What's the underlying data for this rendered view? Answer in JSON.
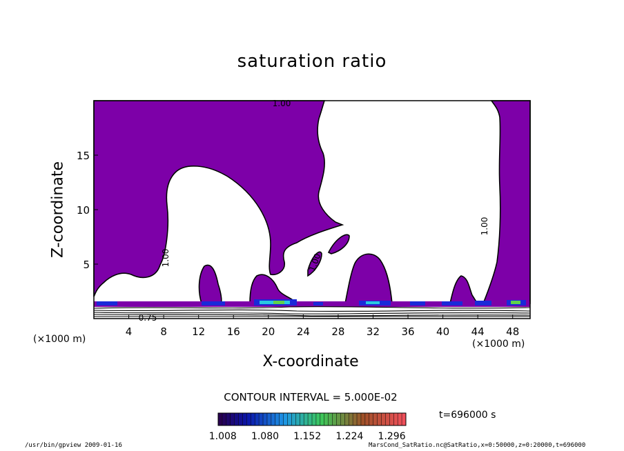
{
  "title": "saturation ratio",
  "chart_data": {
    "type": "heatmap",
    "title": "saturation ratio",
    "xlabel": "X-coordinate",
    "ylabel": "Z-coordinate",
    "x_unit": "(×1000 m)",
    "z_unit": "(×1000 m)",
    "x_ticks": [
      4,
      8,
      12,
      16,
      20,
      24,
      28,
      32,
      36,
      40,
      44,
      48
    ],
    "y_ticks": [
      5,
      10,
      15
    ],
    "xlim": [
      0,
      50
    ],
    "ylim": [
      0,
      20
    ],
    "contour_labels": [
      "1.00",
      "1.00",
      "1.00",
      "1.00",
      "0.75"
    ],
    "contour_interval": "CONTOUR INTERVAL = 5.000E-02",
    "colorbar_labels": [
      "1.008",
      "1.080",
      "1.152",
      "1.224",
      "1.296"
    ],
    "colorbar_range": [
      1.0,
      1.32
    ],
    "fill_color": "#7d00a8",
    "time_label": "t=696000 s"
  },
  "footer": {
    "left": "/usr/bin/gpview   2009-01-16",
    "right": "MarsCond_SatRatio.nc@SatRatio,x=0:50000,z=0:20000,t=696000"
  }
}
